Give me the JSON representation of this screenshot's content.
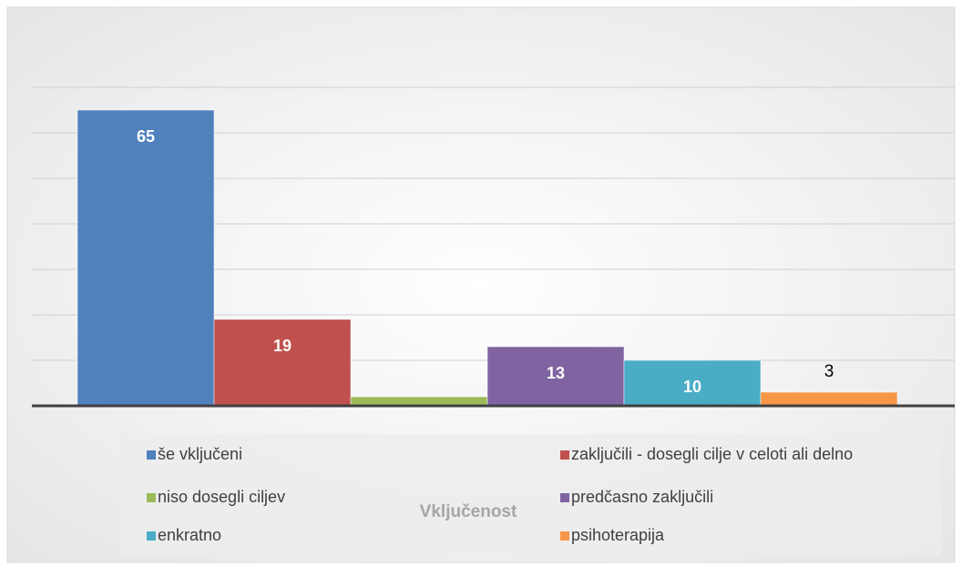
{
  "chart_data": {
    "type": "bar",
    "legend_title": "Vključenost",
    "series": [
      {
        "name": "še vključeni",
        "color": "#4f81bd",
        "values": [
          65
        ],
        "label_position": "inside"
      },
      {
        "name": "zaključili - dosegli cilje v celoti ali delno",
        "color": "#c0504d",
        "values": [
          19
        ],
        "label_position": "inside"
      },
      {
        "name": "niso dosegli ciljev",
        "color": "#9bbb59",
        "values": [
          2
        ],
        "label_position": "none"
      },
      {
        "name": "predčasno zaključili",
        "color": "#8064a2",
        "values": [
          13
        ],
        "label_position": "inside"
      },
      {
        "name": "enkratno",
        "color": "#4bacc6",
        "values": [
          10
        ],
        "label_position": "inside"
      },
      {
        "name": "psihoterapija",
        "color": "#f79646",
        "values": [
          3
        ],
        "label_position": "outside"
      }
    ],
    "ylim": [
      0,
      70
    ],
    "yticks": [
      0,
      10,
      20,
      30,
      40,
      50,
      60,
      70
    ],
    "grid": true,
    "legend": "bottom"
  }
}
